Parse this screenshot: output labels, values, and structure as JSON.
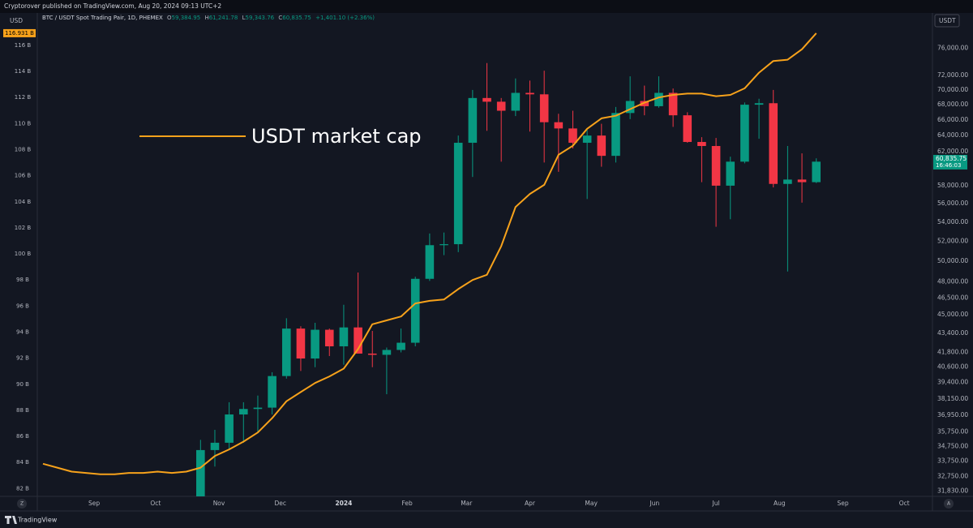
{
  "header": {
    "publisher": "Cryptorover published on TradingView.com, Aug 20, 2024 09:13 UTC+2",
    "symbol": "BTC / USDT Spot Trading Pair, 1D, PHEMEX",
    "ohlc": [
      {
        "key": "O",
        "value": "59,384.95"
      },
      {
        "key": "H",
        "value": "61,241.78"
      },
      {
        "key": "L",
        "value": "59,343.76"
      },
      {
        "key": "C",
        "value": "60,835.75"
      }
    ],
    "change": "+1,401.10 (+2.36%)"
  },
  "footer": {
    "brand": "TradingView",
    "left_control": "Z",
    "right_control": "A"
  },
  "chart_data": {
    "type": "candlestick",
    "y_label": "USD",
    "y2_label": "USDT",
    "xlim": [
      -149,
      287
    ],
    "xticks": [
      {
        "value": -122,
        "label": "Sep"
      },
      {
        "value": -92,
        "label": "Oct"
      },
      {
        "value": -61,
        "label": "Nov"
      },
      {
        "value": -31,
        "label": "Dec"
      },
      {
        "value": 0,
        "label": "2024"
      },
      {
        "value": 31,
        "label": "Feb"
      },
      {
        "value": 60,
        "label": "Mar"
      },
      {
        "value": 91,
        "label": "Apr"
      },
      {
        "value": 121,
        "label": "May"
      },
      {
        "value": 152,
        "label": "Jun"
      },
      {
        "value": 182,
        "label": "Jul"
      },
      {
        "value": 213,
        "label": "Aug"
      },
      {
        "value": 244,
        "label": "Sep"
      },
      {
        "value": 274,
        "label": "Oct"
      }
    ],
    "ylim": [
      81.4,
      117.3
    ],
    "yticks": [
      {
        "value": 82,
        "label": "82 B"
      },
      {
        "value": 84,
        "label": "84 B"
      },
      {
        "value": 86,
        "label": "86 B"
      },
      {
        "value": 88,
        "label": "88 B"
      },
      {
        "value": 90,
        "label": "90 B"
      },
      {
        "value": 92,
        "label": "92 B"
      },
      {
        "value": 94,
        "label": "94 B"
      },
      {
        "value": 96,
        "label": "96 B"
      },
      {
        "value": 98,
        "label": "98 B"
      },
      {
        "value": 100,
        "label": "100 B"
      },
      {
        "value": 102,
        "label": "102 B"
      },
      {
        "value": 104,
        "label": "104 B"
      },
      {
        "value": 106,
        "label": "106 B"
      },
      {
        "value": 108,
        "label": "108 B"
      },
      {
        "value": 110,
        "label": "110 B"
      },
      {
        "value": 112,
        "label": "112 B"
      },
      {
        "value": 114,
        "label": "114 B"
      },
      {
        "value": 116,
        "label": "116 B"
      }
    ],
    "y2lim": [
      31500,
      79000
    ],
    "y2_log": true,
    "y2ticks": [
      {
        "value": 31830,
        "label": "31,830.00"
      },
      {
        "value": 32750,
        "label": "32,750.00"
      },
      {
        "value": 33750,
        "label": "33,750.00"
      },
      {
        "value": 34750,
        "label": "34,750.00"
      },
      {
        "value": 35750,
        "label": "35,750.00"
      },
      {
        "value": 36950,
        "label": "36,950.00"
      },
      {
        "value": 38150,
        "label": "38,150.00"
      },
      {
        "value": 39400,
        "label": "39,400.00"
      },
      {
        "value": 40600,
        "label": "40,600.00"
      },
      {
        "value": 41800,
        "label": "41,800.00"
      },
      {
        "value": 43400,
        "label": "43,400.00"
      },
      {
        "value": 45000,
        "label": "45,000.00"
      },
      {
        "value": 46500,
        "label": "46,500.00"
      },
      {
        "value": 48000,
        "label": "48,000.00"
      },
      {
        "value": 50000,
        "label": "50,000.00"
      },
      {
        "value": 52000,
        "label": "52,000.00"
      },
      {
        "value": 54000,
        "label": "54,000.00"
      },
      {
        "value": 56000,
        "label": "56,000.00"
      },
      {
        "value": 58000,
        "label": "58,000.00"
      },
      {
        "value": 62000,
        "label": "62,000.00"
      },
      {
        "value": 64000,
        "label": "64,000.00"
      },
      {
        "value": 66000,
        "label": "66,000.00"
      },
      {
        "value": 68000,
        "label": "68,000.00"
      },
      {
        "value": 70000,
        "label": "70,000.00"
      },
      {
        "value": 72000,
        "label": "72,000.00"
      },
      {
        "value": 76000,
        "label": "76,000.00"
      }
    ],
    "series": [
      {
        "type": "candlestick",
        "axis": "y2",
        "up_color": "#089981",
        "down_color": "#f23645",
        "x": [
          -70,
          -63,
          -56,
          -49,
          -42,
          -35,
          -28,
          -21,
          -14,
          -7,
          0,
          7,
          14,
          21,
          28,
          35,
          42,
          49,
          56,
          63,
          70,
          77,
          84,
          91,
          98,
          105,
          112,
          119,
          126,
          133,
          140,
          147,
          154,
          161,
          168,
          175,
          182,
          189,
          196,
          203,
          210,
          217,
          224,
          231
        ],
        "open": [
          31000,
          34500,
          35000,
          37000,
          37400,
          37500,
          39900,
          43800,
          41300,
          43700,
          42300,
          43900,
          41700,
          41600,
          42000,
          42600,
          48300,
          51600,
          51700,
          63100,
          68900,
          68400,
          67200,
          69600,
          69400,
          65700,
          64900,
          63100,
          64000,
          61500,
          66900,
          68500,
          67800,
          69600,
          66600,
          63200,
          62700,
          58000,
          60800,
          68000,
          68200,
          58200,
          58700,
          58400
        ],
        "high": [
          35200,
          35900,
          37900,
          37900,
          38400,
          40200,
          44700,
          44000,
          44300,
          43800,
          45900,
          48900,
          43600,
          42200,
          43800,
          48500,
          52800,
          52900,
          64000,
          70000,
          73800,
          68900,
          71600,
          71300,
          72700,
          66800,
          67200,
          64700,
          65500,
          67700,
          71900,
          70600,
          71900,
          70200,
          67000,
          63800,
          63700,
          61400,
          68300,
          68800,
          70000,
          62700,
          61800,
          61200
        ],
        "low": [
          30000,
          33400,
          34500,
          35000,
          35700,
          37000,
          39700,
          40300,
          40600,
          41500,
          40800,
          41700,
          40600,
          38500,
          41800,
          42300,
          48100,
          50600,
          50900,
          59000,
          64600,
          60800,
          66500,
          64500,
          60700,
          59600,
          62400,
          56500,
          60200,
          60700,
          66100,
          66600,
          67600,
          65100,
          63100,
          58400,
          53500,
          54300,
          60600,
          63600,
          57800,
          49000,
          56100,
          58300
        ],
        "close": [
          34500,
          35000,
          37000,
          37400,
          37500,
          39900,
          43800,
          41300,
          43700,
          42300,
          43900,
          41700,
          41600,
          42000,
          42600,
          48300,
          51600,
          51700,
          63100,
          68900,
          68400,
          67200,
          69600,
          69400,
          65700,
          64900,
          63100,
          64000,
          61500,
          66900,
          68500,
          67800,
          69600,
          66600,
          63200,
          62700,
          58000,
          60800,
          68000,
          68200,
          58200,
          58700,
          58400,
          60800
        ],
        "price_label": {
          "value": 60835.75,
          "label": "60,835.75",
          "countdown": "16:46:03"
        }
      },
      {
        "type": "line",
        "name": "USDT market cap",
        "color": "#f7a21b",
        "x": [
          -147,
          -140,
          -133,
          -126,
          -119,
          -112,
          -105,
          -98,
          -91,
          -84,
          -77,
          -70,
          -63,
          -56,
          -49,
          -42,
          -35,
          -28,
          -21,
          -14,
          -7,
          0,
          7,
          14,
          21,
          28,
          35,
          42,
          49,
          56,
          63,
          70,
          77,
          84,
          91,
          98,
          105,
          112,
          119,
          126,
          133,
          140,
          147,
          154,
          161,
          168,
          175,
          182,
          189,
          196,
          203,
          210,
          217,
          224,
          231
        ],
        "values": [
          83.9,
          83.6,
          83.3,
          83.2,
          83.1,
          83.1,
          83.2,
          83.2,
          83.3,
          83.2,
          83.3,
          83.6,
          84.5,
          85.0,
          85.6,
          86.3,
          87.4,
          88.7,
          89.4,
          90.1,
          90.6,
          91.2,
          92.7,
          94.6,
          94.9,
          95.2,
          96.2,
          96.4,
          96.5,
          97.3,
          98.0,
          98.4,
          100.6,
          103.6,
          104.6,
          105.3,
          107.6,
          108.3,
          109.6,
          110.4,
          110.6,
          111.1,
          111.6,
          112.0,
          112.2,
          112.3,
          112.3,
          112.1,
          112.2,
          112.7,
          113.9,
          114.8,
          114.9,
          115.7,
          116.931
        ],
        "price_label": {
          "value": 116.931,
          "label": "116.931 B"
        }
      }
    ]
  }
}
